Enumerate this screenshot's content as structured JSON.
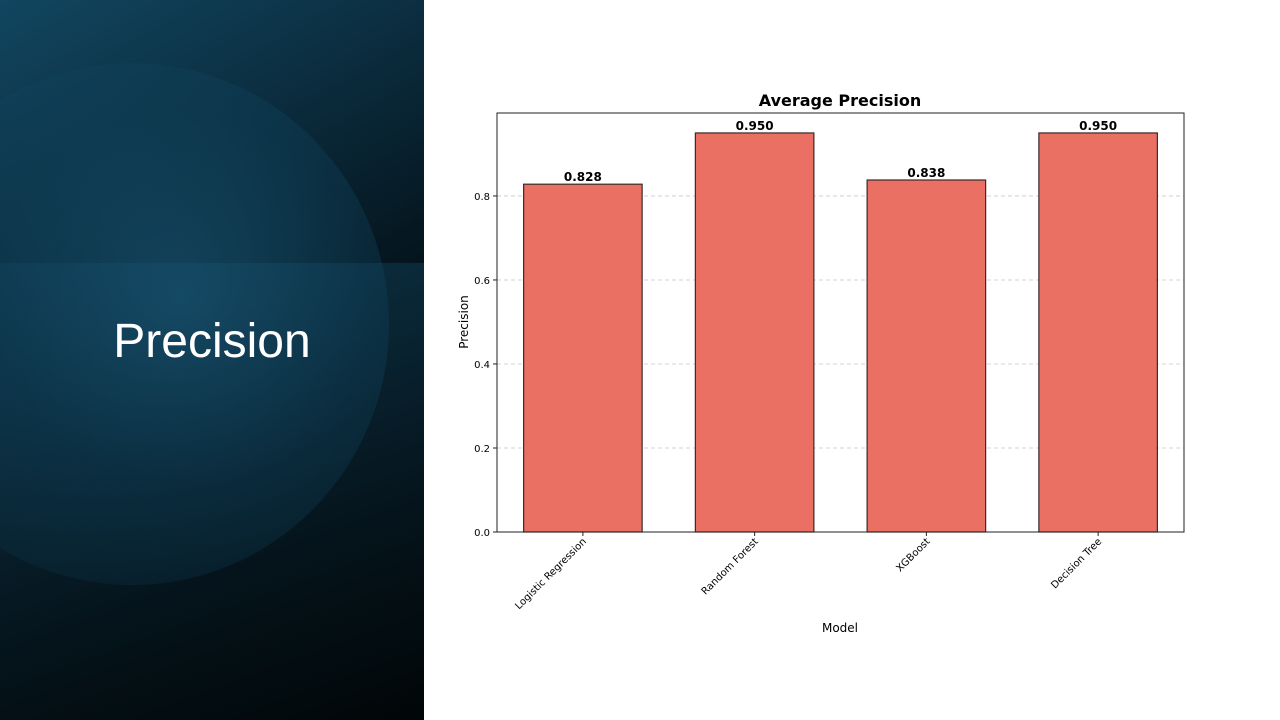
{
  "slide": {
    "title": "Precision"
  },
  "colors": {
    "bar_fill": "#e97063",
    "bar_edge": "#3a2a28",
    "panel_dark": "#05141c",
    "panel_accent": "#134b66"
  },
  "chart_data": {
    "type": "bar",
    "title": "Average Precision",
    "xlabel": "Model",
    "ylabel": "Precision",
    "categories": [
      "Logistic Regression",
      "Random Forest",
      "XGBoost",
      "Decision Tree"
    ],
    "values": [
      0.828,
      0.95,
      0.838,
      0.95
    ],
    "value_labels": [
      "0.828",
      "0.950",
      "0.838",
      "0.950"
    ],
    "yticks": [
      "0.0",
      "0.2",
      "0.4",
      "0.6",
      "0.8"
    ],
    "ytick_values": [
      0.0,
      0.2,
      0.4,
      0.6,
      0.8
    ],
    "ylim": [
      0,
      0.9975
    ],
    "grid": "y-dashed",
    "legend": "none"
  }
}
